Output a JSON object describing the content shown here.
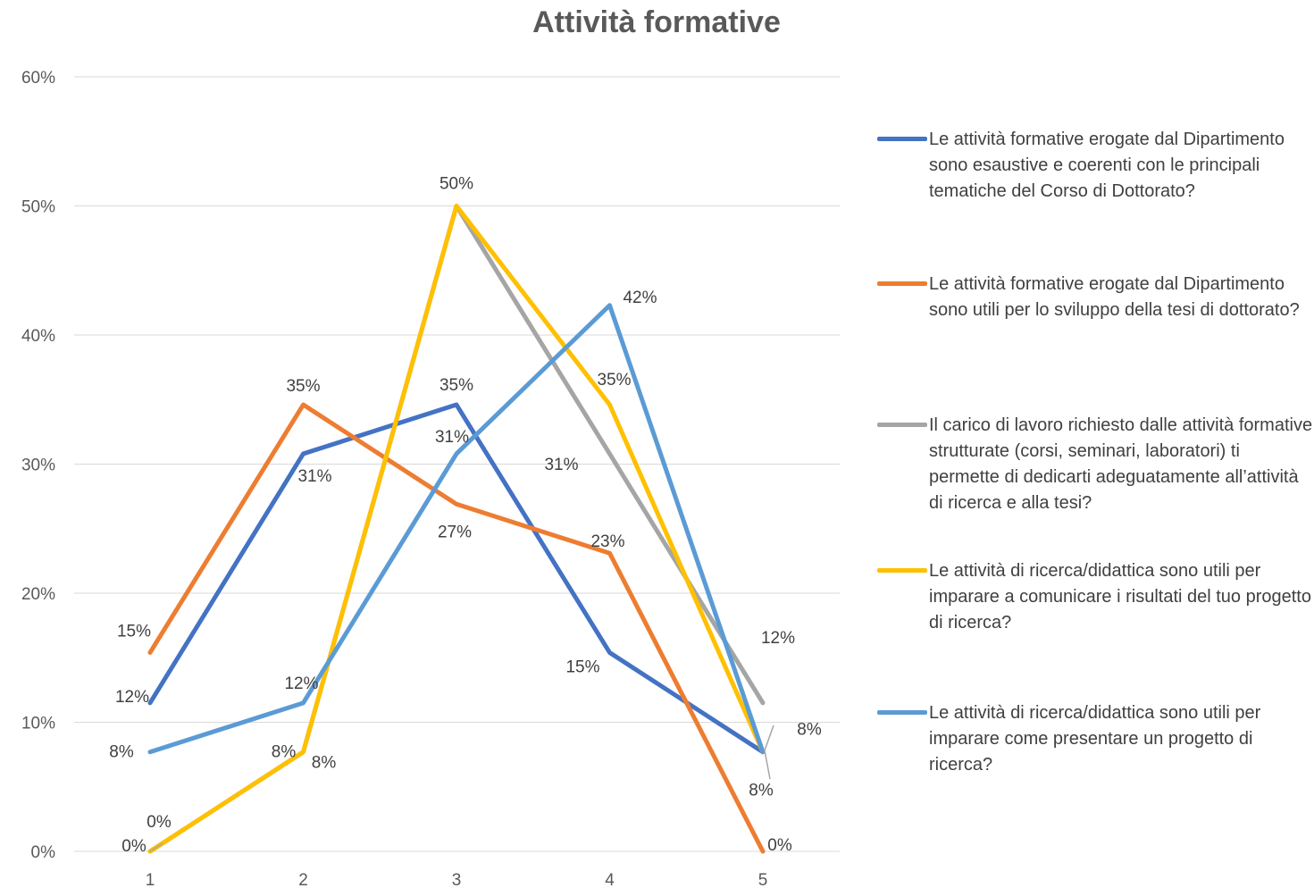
{
  "chart_data": {
    "type": "line",
    "title": "Attività formative",
    "categories": [
      "1",
      "2",
      "3",
      "4",
      "5"
    ],
    "ylim": [
      0,
      0.6
    ],
    "yticks": [
      {
        "value": 0,
        "label": "0%"
      },
      {
        "value": 0.1,
        "label": "10%"
      },
      {
        "value": 0.2,
        "label": "20%"
      },
      {
        "value": 0.3,
        "label": "30%"
      },
      {
        "value": 0.4,
        "label": "40%"
      },
      {
        "value": 0.5,
        "label": "50%"
      },
      {
        "value": 0.6,
        "label": "60%"
      }
    ],
    "grid": true,
    "legend_position": "right",
    "series": [
      {
        "name": "Le attività formative erogate dal Dipartimento sono esaustive e coerenti con le principali tematiche del Corso di Dottorato?",
        "color": "#4472C4",
        "values": [
          0.115,
          0.308,
          0.346,
          0.154,
          0.077
        ],
        "labels": [
          "12%",
          "31%",
          "35%",
          "15%",
          "8%"
        ]
      },
      {
        "name": "Le attività formative erogate dal Dipartimento sono utili per lo sviluppo della tesi di dottorato?",
        "color": "#ED7D31",
        "values": [
          0.154,
          0.346,
          0.269,
          0.231,
          0.0
        ],
        "labels": [
          "15%",
          "35%",
          "27%",
          "23%",
          "0%"
        ]
      },
      {
        "name": "Il carico di lavoro richiesto dalle attività formative strutturate (corsi, seminari, laboratori) ti permette di dedicarti adeguatamente all’attività di ricerca e alla tesi?",
        "color": "#A5A5A5",
        "values": [
          0.0,
          0.077,
          0.5,
          0.308,
          0.115
        ],
        "labels": [
          "0%",
          "8%",
          "50%",
          "31%",
          "12%"
        ]
      },
      {
        "name": "Le attività di ricerca/didattica sono utili per imparare a comunicare i risultati del tuo progetto di ricerca?",
        "color": "#FFC000",
        "values": [
          0.0,
          0.077,
          0.5,
          0.346,
          0.077
        ],
        "labels": [
          "0%",
          "8%",
          "50%",
          "35%",
          "8%"
        ]
      },
      {
        "name": "Le attività di ricerca/didattica sono utili per imparare come presentare un progetto di ricerca?",
        "color": "#5B9BD5",
        "values": [
          0.077,
          0.115,
          0.308,
          0.423,
          0.077
        ],
        "labels": [
          "8%",
          "12%",
          "31%",
          "42%",
          "8%"
        ]
      }
    ]
  }
}
